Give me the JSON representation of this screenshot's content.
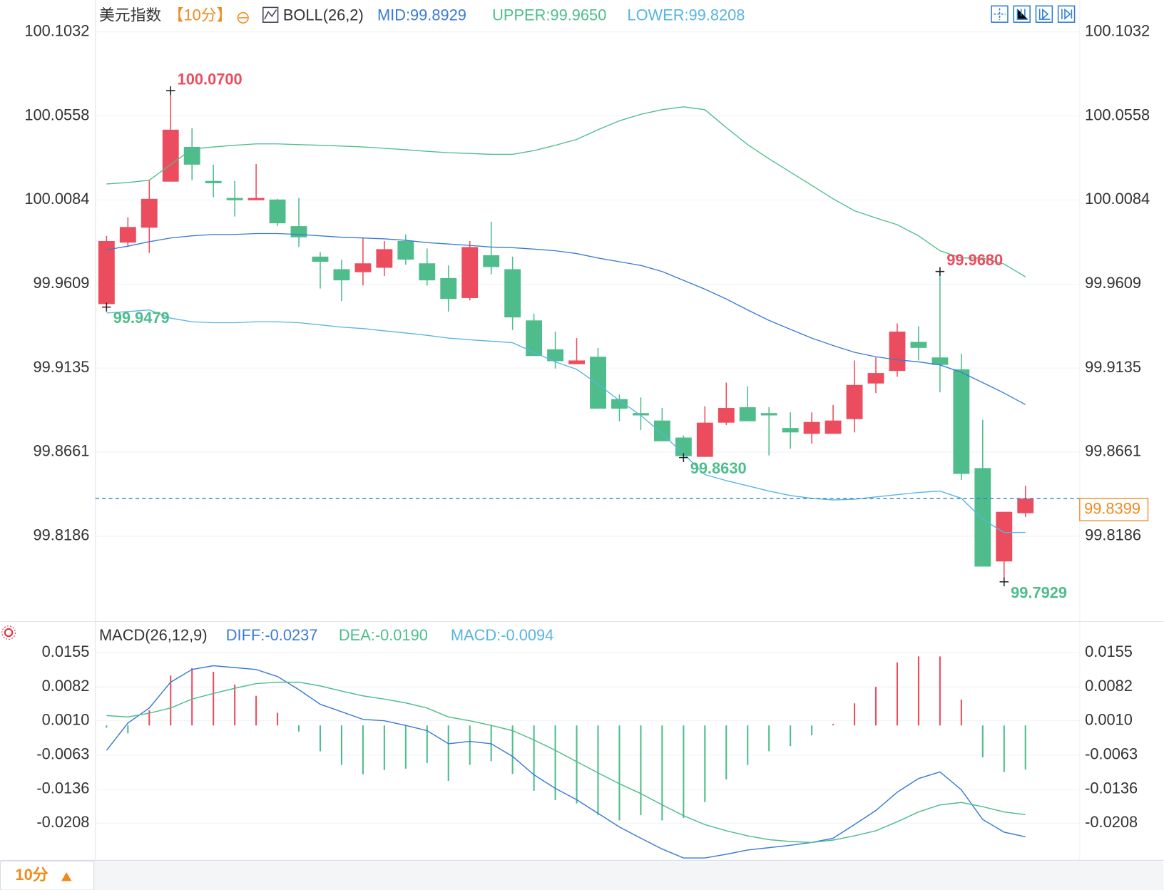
{
  "tab": "10分",
  "chart_data": [
    {
      "type": "candlestick",
      "title": "美元指数",
      "subtitle": "【10分】",
      "indicator": "BOLL(26,2)",
      "ylim": [
        99.7705,
        100.117
      ],
      "yticks": [
        100.1032,
        100.0558,
        100.0084,
        99.9609,
        99.9135,
        99.8661,
        99.8186
      ],
      "grid": true,
      "up_color": "#ec4d5e",
      "down_color": "#4fbd8b",
      "candles": {
        "open": [
          99.9496,
          99.9843,
          99.9927,
          100.0187,
          100.0383,
          100.0191,
          100.0095,
          100.0082,
          100.0086,
          99.9936,
          99.9764,
          99.9693,
          99.9676,
          99.9701,
          99.9852,
          99.9726,
          99.9643,
          99.953,
          99.9772,
          99.9693,
          99.9404,
          99.9241,
          99.9157,
          99.9199,
          99.896,
          99.8881,
          99.8839,
          99.8743,
          99.8634,
          99.8827,
          99.8914,
          99.8881,
          99.8797,
          99.8764,
          99.8764,
          99.8847,
          99.9048,
          99.9119,
          99.9283,
          99.9195,
          99.9128,
          99.8571,
          99.8044,
          99.8316
        ],
        "high": [
          99.9881,
          99.9986,
          100.0195,
          100.07,
          100.0488,
          100.0283,
          100.0191,
          100.0287,
          100.009,
          100.0095,
          99.9789,
          99.9747,
          99.9873,
          99.9852,
          99.9889,
          99.981,
          99.9714,
          99.9852,
          99.9961,
          99.9764,
          99.9442,
          99.9341,
          99.9304,
          99.9249,
          99.8986,
          99.8969,
          99.891,
          99.8755,
          99.8919,
          99.9053,
          99.9032,
          99.8914,
          99.8885,
          99.8885,
          99.8927,
          99.9178,
          99.9195,
          99.9387,
          99.9371,
          99.968,
          99.9216,
          99.8843,
          99.8324,
          99.8471
        ],
        "low": [
          99.9479,
          99.9818,
          99.9785,
          100.0187,
          100.0195,
          100.0099,
          99.999,
          100.0082,
          99.9936,
          99.9818,
          99.9584,
          99.9513,
          99.9601,
          99.9655,
          99.9718,
          99.9601,
          99.9454,
          99.9517,
          99.9664,
          99.935,
          99.9203,
          99.9132,
          99.9157,
          99.8906,
          99.8835,
          99.8785,
          99.8722,
          99.863,
          99.8634,
          99.8814,
          99.8835,
          99.8642,
          99.868,
          99.8709,
          99.8764,
          99.8772,
          99.8994,
          99.9086,
          99.9178,
          99.8998,
          99.8504,
          99.8015,
          99.7929,
          99.8295
        ],
        "close": [
          99.9852,
          99.9931,
          100.009,
          100.048,
          100.0283,
          100.0178,
          100.0082,
          100.0095,
          99.9952,
          99.9873,
          99.9735,
          99.963,
          99.9726,
          99.9806,
          99.9747,
          99.963,
          99.9525,
          99.9818,
          99.9705,
          99.9421,
          99.9203,
          99.9174,
          99.9178,
          99.8906,
          99.8906,
          99.8868,
          99.8722,
          99.8638,
          99.8827,
          99.891,
          99.8835,
          99.8868,
          99.8772,
          99.8831,
          99.8839,
          99.904,
          99.9107,
          99.9341,
          99.9249,
          99.9153,
          99.8538,
          99.8015,
          99.8324,
          99.8399
        ]
      },
      "series": [
        {
          "name": "MID:99.8929",
          "color": "#3a7bd5",
          "values": [
            99.9802,
            99.9823,
            99.9848,
            99.9869,
            99.9881,
            99.9889,
            99.9889,
            99.9894,
            99.9894,
            99.9889,
            99.9881,
            99.9873,
            99.9869,
            99.9864,
            99.9856,
            99.9843,
            99.9835,
            99.9827,
            99.9818,
            99.9814,
            99.9806,
            99.9797,
            99.9781,
            99.9756,
            99.9735,
            99.9714,
            99.968,
            99.963,
            99.958,
            99.9525,
            99.9463,
            99.9404,
            99.9354,
            99.9304,
            99.9262,
            99.9224,
            99.9199,
            99.9182,
            99.917,
            99.9153,
            99.9111,
            99.9053,
            99.8994,
            99.8929
          ]
        },
        {
          "name": "UPPER:99.9650",
          "color": "#4fbd8b",
          "values": [
            100.0174,
            100.0182,
            100.0195,
            100.0283,
            100.0371,
            100.0383,
            100.0392,
            100.04,
            100.04,
            100.0396,
            100.0392,
            100.0388,
            100.0383,
            100.0375,
            100.0367,
            100.0358,
            100.035,
            100.0346,
            100.0341,
            100.0341,
            100.0362,
            100.0392,
            100.0425,
            100.048,
            100.053,
            100.0567,
            100.0593,
            100.0609,
            100.0593,
            100.0492,
            100.0396,
            100.0316,
            100.0241,
            100.0166,
            100.009,
            100.0023,
            99.9982,
            99.9944,
            99.9881,
            99.9797,
            99.9756,
            99.9756,
            99.9722,
            99.965
          ]
        },
        {
          "name": "LOWER:99.8208",
          "color": "#58b4e2",
          "values": [
            99.9446,
            99.9454,
            99.9463,
            99.9417,
            99.9396,
            99.9391,
            99.9391,
            99.9396,
            99.9396,
            99.9391,
            99.9379,
            99.9366,
            99.9358,
            99.9345,
            99.9333,
            99.932,
            99.9304,
            99.9295,
            99.9287,
            99.9278,
            99.9224,
            99.917,
            99.9128,
            99.9044,
            99.8952,
            99.8868,
            99.8764,
            99.8651,
            99.8534,
            99.85,
            99.8471,
            99.8441,
            99.8416,
            99.84,
            99.8391,
            99.8395,
            99.8408,
            99.8421,
            99.8433,
            99.8441,
            99.84,
            99.8282,
            99.8207,
            99.8208
          ]
        }
      ],
      "annotations": [
        {
          "text": "100.0700",
          "value": 100.07,
          "candle": 3
        },
        {
          "text": "99.9479",
          "value": 99.9479,
          "candle": 0
        },
        {
          "text": "99.8630",
          "value": 99.863,
          "candle": 27
        },
        {
          "text": "99.9680",
          "value": 99.968,
          "candle": 39
        },
        {
          "text": "99.7929",
          "value": 99.7929,
          "candle": 42
        }
      ],
      "last_price_label": "99.8399",
      "last_price_color": "#f08a1c"
    },
    {
      "type": "macd",
      "title": "MACD(26,12,9)",
      "ylim": [
        -0.0287,
        0.021
      ],
      "yticks": [
        0.0155,
        0.0082,
        {
          "value": 0.001,
          "label": "0.0010"
        },
        -0.0063,
        -0.0136,
        -0.0208
      ],
      "grid": true,
      "up_color": "#ec4d5e",
      "down_color": "#4fbd8b",
      "bars": {
        "name": "MACD:-0.0094",
        "color": "#58b4e2",
        "values": [
          -0.0005,
          -0.0017,
          0.0032,
          0.0106,
          0.0122,
          0.0114,
          0.0087,
          0.0063,
          0.0027,
          -0.0013,
          -0.0055,
          -0.0084,
          -0.0104,
          -0.0095,
          -0.0092,
          -0.008,
          -0.0118,
          -0.0084,
          -0.0076,
          -0.0103,
          -0.0139,
          -0.0159,
          -0.0166,
          -0.0191,
          -0.0202,
          -0.0191,
          -0.0202,
          -0.0197,
          -0.0163,
          -0.0115,
          -0.0084,
          -0.0055,
          -0.0044,
          -0.0021,
          0.0003,
          0.0047,
          0.0082,
          0.0134,
          0.0147,
          0.0147,
          0.0055,
          -0.0068,
          -0.0099,
          -0.0094
        ]
      },
      "series": [
        {
          "name": "DIFF:-0.0237",
          "color": "#3a7bd5",
          "values": [
            -0.0053,
            0.0005,
            0.0037,
            0.0092,
            0.0119,
            0.0127,
            0.0123,
            0.0119,
            0.0104,
            0.0076,
            0.0045,
            0.0029,
            0.0013,
            0.001,
            0.0,
            -0.0011,
            -0.0039,
            -0.0034,
            -0.0039,
            -0.0066,
            -0.0105,
            -0.0134,
            -0.0158,
            -0.0187,
            -0.0216,
            -0.024,
            -0.0263,
            -0.0282,
            -0.0282,
            -0.0274,
            -0.0265,
            -0.026,
            -0.0255,
            -0.0249,
            -0.024,
            -0.0211,
            -0.0181,
            -0.0142,
            -0.0113,
            -0.0099,
            -0.0137,
            -0.02,
            -0.0227,
            -0.0237
          ]
        },
        {
          "name": "DEA:-0.0190",
          "color": "#4fbd8b",
          "values": [
            0.0021,
            0.0018,
            0.0026,
            0.0037,
            0.0056,
            0.0068,
            0.0079,
            0.0089,
            0.0092,
            0.0092,
            0.0084,
            0.0073,
            0.0063,
            0.0056,
            0.0048,
            0.0037,
            0.0018,
            0.001,
            0.0,
            -0.0011,
            -0.0031,
            -0.0053,
            -0.0077,
            -0.0101,
            -0.0124,
            -0.0145,
            -0.0169,
            -0.0192,
            -0.0211,
            -0.0224,
            -0.0235,
            -0.0243,
            -0.0247,
            -0.0249,
            -0.0244,
            -0.0235,
            -0.0224,
            -0.0205,
            -0.0184,
            -0.0169,
            -0.0164,
            -0.0173,
            -0.0184,
            -0.019
          ]
        }
      ]
    }
  ]
}
